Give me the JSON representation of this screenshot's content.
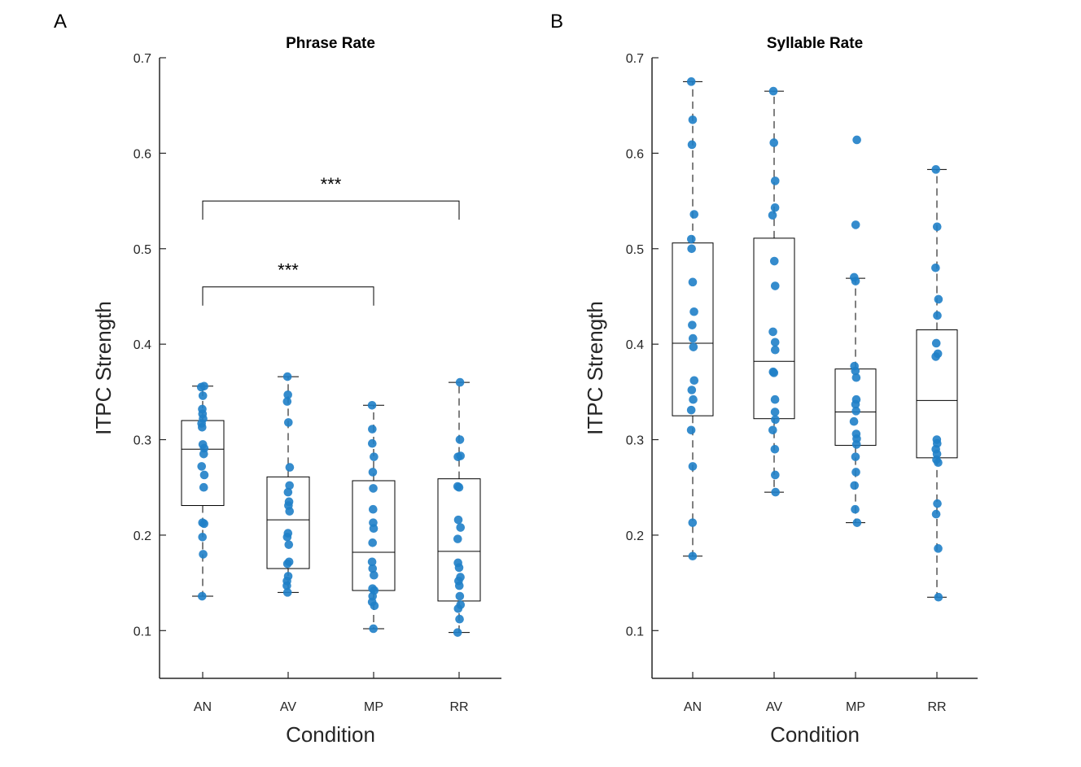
{
  "figure": {
    "panel_a_letter": "A",
    "panel_b_letter": "B"
  },
  "colors": {
    "point": "#1f7fc8",
    "axis": "#262626",
    "box": "#000000"
  },
  "chart_data": [
    {
      "type": "box",
      "title": "Phrase Rate",
      "xlabel": "Condition",
      "ylabel": "ITPC Strength",
      "ylim": [
        0.05,
        0.7
      ],
      "yticks": [
        0.1,
        0.2,
        0.3,
        0.4,
        0.5,
        0.6,
        0.7
      ],
      "ytick_labels": [
        "0.1",
        "0.2",
        "0.3",
        "0.4",
        "0.5",
        "0.6",
        "0.7"
      ],
      "categories": [
        "AN",
        "AV",
        "MP",
        "RR"
      ],
      "boxes": [
        {
          "category": "AN",
          "q1": 0.231,
          "median": 0.29,
          "q3": 0.32,
          "whisker_low": 0.136,
          "whisker_high": 0.356
        },
        {
          "category": "AV",
          "q1": 0.165,
          "median": 0.216,
          "q3": 0.261,
          "whisker_low": 0.14,
          "whisker_high": 0.366
        },
        {
          "category": "MP",
          "q1": 0.142,
          "median": 0.182,
          "q3": 0.257,
          "whisker_low": 0.102,
          "whisker_high": 0.336
        },
        {
          "category": "RR",
          "q1": 0.131,
          "median": 0.183,
          "q3": 0.259,
          "whisker_low": 0.098,
          "whisker_high": 0.36
        }
      ],
      "points": [
        {
          "category": "AN",
          "values": [
            0.356,
            0.355,
            0.346,
            0.332,
            0.327,
            0.322,
            0.317,
            0.313,
            0.295,
            0.291,
            0.285,
            0.272,
            0.263,
            0.25,
            0.213,
            0.212,
            0.198,
            0.18,
            0.136
          ]
        },
        {
          "category": "AV",
          "values": [
            0.366,
            0.347,
            0.34,
            0.318,
            0.271,
            0.252,
            0.245,
            0.235,
            0.231,
            0.225,
            0.202,
            0.198,
            0.19,
            0.172,
            0.17,
            0.157,
            0.152,
            0.147,
            0.14
          ]
        },
        {
          "category": "MP",
          "values": [
            0.336,
            0.311,
            0.296,
            0.282,
            0.266,
            0.249,
            0.227,
            0.213,
            0.207,
            0.192,
            0.172,
            0.165,
            0.158,
            0.144,
            0.142,
            0.136,
            0.13,
            0.126,
            0.102
          ]
        },
        {
          "category": "RR",
          "values": [
            0.36,
            0.3,
            0.283,
            0.282,
            0.251,
            0.25,
            0.216,
            0.208,
            0.196,
            0.171,
            0.166,
            0.156,
            0.152,
            0.147,
            0.136,
            0.127,
            0.123,
            0.112,
            0.098
          ]
        }
      ],
      "significance": [
        {
          "from": "AN",
          "to": "RR",
          "y": 0.55,
          "label": "***"
        },
        {
          "from": "AN",
          "to": "MP",
          "y": 0.46,
          "label": "***"
        }
      ]
    },
    {
      "type": "box",
      "title": "Syllable Rate",
      "xlabel": "Condition",
      "ylabel": "ITPC Strength",
      "ylim": [
        0.05,
        0.7
      ],
      "yticks": [
        0.1,
        0.2,
        0.3,
        0.4,
        0.5,
        0.6,
        0.7
      ],
      "ytick_labels": [
        "0.1",
        "0.2",
        "0.3",
        "0.4",
        "0.5",
        "0.6",
        "0.7"
      ],
      "categories": [
        "AN",
        "AV",
        "MP",
        "RR"
      ],
      "boxes": [
        {
          "category": "AN",
          "q1": 0.325,
          "median": 0.401,
          "q3": 0.506,
          "whisker_low": 0.178,
          "whisker_high": 0.675
        },
        {
          "category": "AV",
          "q1": 0.322,
          "median": 0.382,
          "q3": 0.511,
          "whisker_low": 0.245,
          "whisker_high": 0.665
        },
        {
          "category": "MP",
          "q1": 0.294,
          "median": 0.329,
          "q3": 0.374,
          "whisker_low": 0.213,
          "whisker_high": 0.469
        },
        {
          "category": "RR",
          "q1": 0.281,
          "median": 0.341,
          "q3": 0.415,
          "whisker_low": 0.135,
          "whisker_high": 0.583
        }
      ],
      "points": [
        {
          "category": "AN",
          "values": [
            0.675,
            0.635,
            0.609,
            0.536,
            0.51,
            0.5,
            0.465,
            0.434,
            0.42,
            0.406,
            0.397,
            0.362,
            0.352,
            0.342,
            0.331,
            0.31,
            0.272,
            0.213,
            0.178
          ]
        },
        {
          "category": "AV",
          "values": [
            0.665,
            0.611,
            0.571,
            0.543,
            0.535,
            0.487,
            0.461,
            0.413,
            0.402,
            0.394,
            0.371,
            0.37,
            0.342,
            0.329,
            0.321,
            0.31,
            0.29,
            0.263,
            0.245
          ]
        },
        {
          "category": "MP",
          "values": [
            0.614,
            0.525,
            0.47,
            0.466,
            0.377,
            0.372,
            0.365,
            0.342,
            0.337,
            0.33,
            0.319,
            0.306,
            0.301,
            0.295,
            0.282,
            0.266,
            0.252,
            0.227,
            0.213
          ]
        },
        {
          "category": "RR",
          "values": [
            0.583,
            0.523,
            0.48,
            0.447,
            0.43,
            0.401,
            0.39,
            0.387,
            0.3,
            0.296,
            0.29,
            0.285,
            0.279,
            0.276,
            0.233,
            0.222,
            0.186,
            0.135
          ]
        }
      ],
      "significance": []
    }
  ]
}
